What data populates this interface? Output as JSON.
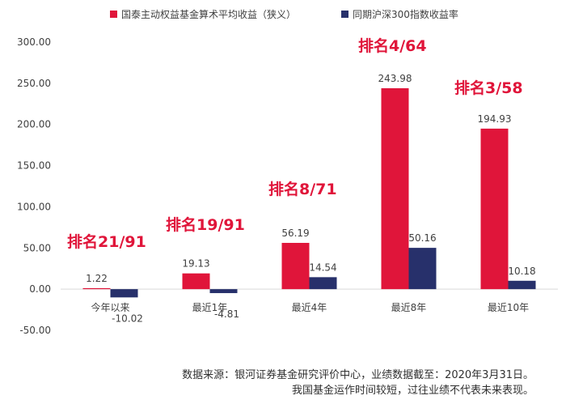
{
  "colors": {
    "series1": "#e0153a",
    "series2": "#27306b",
    "rank": "#e0153a"
  },
  "source": {
    "line1": "数据来源：银河证券基金研究评价中心，业绩数据截至：2020年3月31日。",
    "line2": "我国基金运作时间较短，过往业绩不代表未来表现。"
  },
  "chart_data": {
    "type": "bar",
    "title": "",
    "xlabel": "",
    "ylabel": "",
    "ylim": [
      -50,
      300
    ],
    "yticks": [
      "300.00",
      "250.00",
      "200.00",
      "150.00",
      "100.00",
      "50.00",
      "0.00",
      "-50.00"
    ],
    "ytick_values": [
      300,
      250,
      200,
      150,
      100,
      50,
      0,
      -50
    ],
    "categories": [
      "今年以来",
      "最近1年",
      "最近4年",
      "最近8年",
      "最近10年"
    ],
    "series": [
      {
        "name": "国泰主动权益基金算术平均收益（狭义）",
        "values": [
          1.22,
          19.13,
          56.19,
          243.98,
          194.93
        ],
        "labels": [
          "1.22",
          "19.13",
          "56.19",
          "243.98",
          "194.93"
        ]
      },
      {
        "name": "同期沪深300指数收益率",
        "values": [
          -10.02,
          -4.81,
          14.54,
          50.16,
          10.18
        ],
        "labels": [
          "-10.02",
          "-4.81",
          "14.54",
          "50.16",
          "10.18"
        ]
      }
    ],
    "rank_annotations": [
      "排名21/91",
      "排名19/91",
      "排名8/71",
      "排名4/64",
      "排名3/58"
    ],
    "legend_position": "top",
    "grid": false
  }
}
